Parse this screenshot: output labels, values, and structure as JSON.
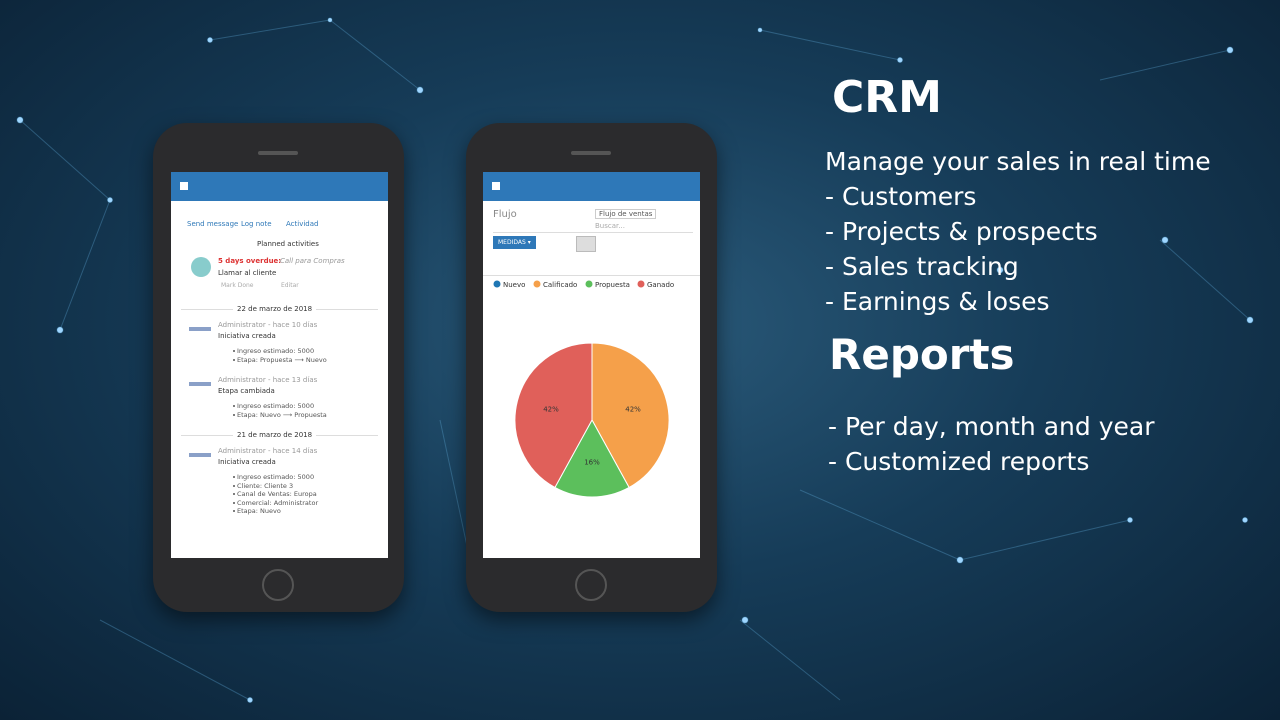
{
  "slide": {
    "crm_title": "CRM",
    "crm_intro": "Manage your sales in real time",
    "crm_items": [
      "- Customers",
      "- Projects & prospects",
      "- Sales tracking",
      "- Earnings & loses"
    ],
    "reports_title": "Reports",
    "reports_items": [
      "- Per day, month and year",
      "- Customized reports"
    ]
  },
  "left_phone": {
    "tabs": [
      "Send message",
      "Log note",
      "Actividad"
    ],
    "planned_activities": "Planned activities",
    "activity": {
      "overdue": "5 days overdue:",
      "summary": "Call para Compras",
      "title": "Llamar al cliente",
      "actions": [
        "Mark Done",
        "Editar"
      ]
    },
    "days": [
      {
        "date": "22 de marzo de 2018",
        "entries": [
          {
            "author": "Administrator - hace 10 días",
            "event": "Iniciativa creada",
            "details": [
              "Ingreso estimado: 5000",
              "Etapa: Propuesta ⟶ Nuevo"
            ]
          },
          {
            "author": "Administrator - hace 13 días",
            "event": "Etapa cambiada",
            "details": [
              "Ingreso estimado: 5000",
              "Etapa: Nuevo ⟶ Propuesta"
            ]
          }
        ]
      },
      {
        "date": "21 de marzo de 2018",
        "entries": [
          {
            "author": "Administrator - hace 14 días",
            "event": "Iniciativa creada",
            "details": [
              "Ingreso estimado: 5000",
              "Cliente: Cliente 3",
              "Canal de Ventas: Europa",
              "Comercial: Administrator",
              "Etapa: Nuevo"
            ]
          }
        ]
      }
    ]
  },
  "right_phone": {
    "view_title": "Flujo",
    "filter": "Flujo de ventas",
    "search": "Buscar...",
    "measures": "MEDIDAS ▾"
  },
  "chart_data": {
    "type": "pie",
    "categories": [
      "Nuevo",
      "Calificado",
      "Propuesta",
      "Ganado"
    ],
    "colors": [
      "#1f77b4",
      "#f5a04a",
      "#5cbf5c",
      "#e0605a"
    ],
    "values": [
      0,
      42,
      16,
      42
    ],
    "value_labels": [
      null,
      "42%",
      "16%",
      "42%"
    ]
  }
}
